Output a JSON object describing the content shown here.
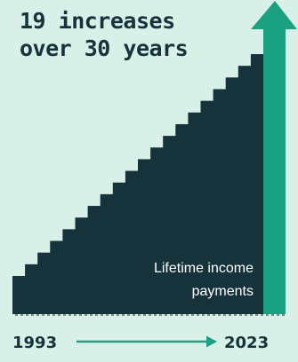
{
  "headline": {
    "line1": "19 increases",
    "line2": "over 30 years"
  },
  "colors": {
    "background": "#d8f0e8",
    "stairs": "#16323a",
    "arrow": "#1aa181",
    "year_arrow": "#1aa181",
    "text_dark": "#16323a",
    "text_light": "#ffffff"
  },
  "chart_data": {
    "type": "step",
    "x_start_label": "1993",
    "x_end_label": "2023",
    "steps": 19,
    "annotation": {
      "line1": "Lifetime income",
      "line2": "payments"
    },
    "grid": false,
    "legend": "none"
  }
}
